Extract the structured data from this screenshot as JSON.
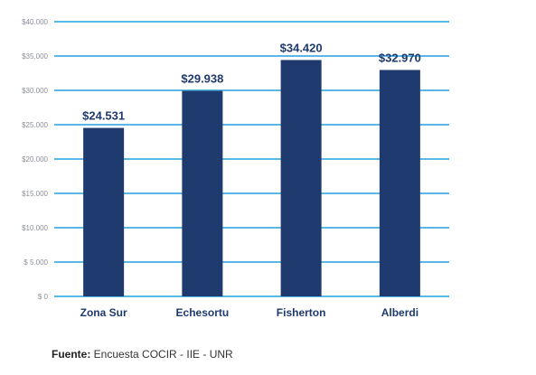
{
  "chart_data": {
    "type": "bar",
    "categories": [
      "Zona Sur",
      "Echesortu",
      "Fisherton",
      "Alberdi"
    ],
    "values": [
      24531,
      29938,
      34420,
      32970
    ],
    "data_labels": [
      "$24.531",
      "$29.938",
      "$34.420",
      "$32.970"
    ],
    "ylim": [
      0,
      40000
    ],
    "yticks": [
      0,
      5000,
      10000,
      15000,
      20000,
      25000,
      30000,
      35000,
      40000
    ],
    "ytick_labels": [
      "$ 0",
      "$ 5.000",
      "$10.000",
      "$15.000",
      "$20.000",
      "$25.000",
      "$30.000",
      "$35.000",
      "$40.000"
    ],
    "grid": true,
    "colors": {
      "bar": "#1f3a6e",
      "grid": "#5bb8e6"
    }
  },
  "source": {
    "label": "Fuente:",
    "text": " Encuesta COCIR - IIE - UNR"
  }
}
